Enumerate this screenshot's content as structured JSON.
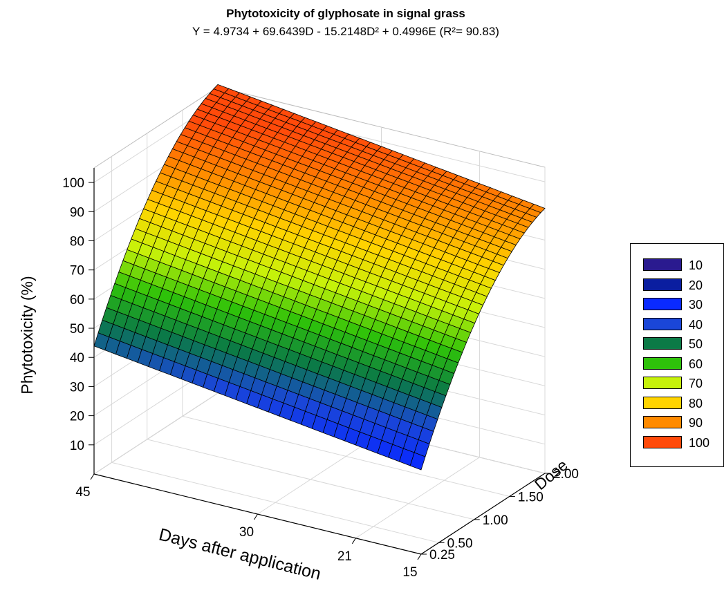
{
  "title": "Phytotoxicity of glyphosate in signal grass",
  "subtitle": "Y = 4.9734 + 69.6439D - 15.2148D² + 0.4996E (R²= 90.83)",
  "chart_data": {
    "type": "surface",
    "title": "Phytotoxicity of glyphosate in signal grass",
    "subtitle": "Y = 4.9734 + 69.6439D - 15.2148D² + 0.4996E (R²= 90.83)",
    "model": {
      "intercept": 4.9734,
      "dose": 69.6439,
      "dose_squared": -15.2148,
      "days": 0.4996
    },
    "x_axis": {
      "label": "Days after application",
      "ticks": [
        45,
        30,
        21,
        15
      ],
      "range": [
        15,
        45
      ]
    },
    "y_axis": {
      "label": "Dose",
      "ticks": [
        "0.25",
        "0.50",
        "1.00",
        "1.50",
        "2.00"
      ],
      "range": [
        0.25,
        2.0
      ]
    },
    "z_axis": {
      "label": "Phytotoxicity (%)",
      "ticks": [
        10,
        20,
        30,
        40,
        50,
        60,
        70,
        80,
        90,
        100
      ],
      "range": [
        0,
        105
      ]
    },
    "grid": true,
    "legend_position": "right",
    "legend": [
      {
        "label": "10",
        "color": "#2a1a8f"
      },
      {
        "label": "20",
        "color": "#0a1ea0"
      },
      {
        "label": "30",
        "color": "#0a2aff"
      },
      {
        "label": "40",
        "color": "#1a46d8"
      },
      {
        "label": "50",
        "color": "#0b7a46"
      },
      {
        "label": "60",
        "color": "#2ec20a"
      },
      {
        "label": "70",
        "color": "#c6f20a"
      },
      {
        "label": "80",
        "color": "#ffd400"
      },
      {
        "label": "90",
        "color": "#ff8a00"
      },
      {
        "label": "100",
        "color": "#ff4a0a"
      }
    ]
  }
}
